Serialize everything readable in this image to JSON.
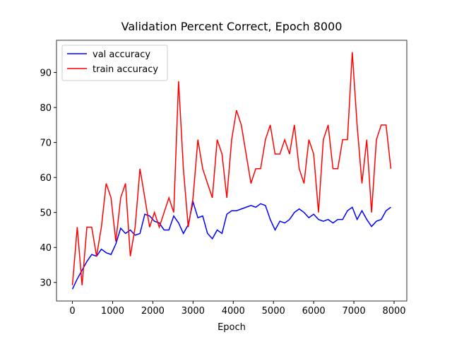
{
  "chart_data": {
    "type": "line",
    "title": "Validation Percent Correct, Epoch 8000",
    "x_label": "Epoch",
    "x": [
      0,
      120,
      240,
      360,
      480,
      600,
      720,
      840,
      960,
      1080,
      1200,
      1320,
      1440,
      1560,
      1680,
      1800,
      1920,
      2040,
      2160,
      2280,
      2400,
      2520,
      2640,
      2760,
      2880,
      3000,
      3120,
      3240,
      3360,
      3480,
      3600,
      3720,
      3840,
      3960,
      4080,
      4200,
      4320,
      4440,
      4560,
      4680,
      4800,
      4920,
      5040,
      5160,
      5280,
      5400,
      5520,
      5640,
      5760,
      5880,
      6000,
      6120,
      6240,
      6360,
      6480,
      6600,
      6720,
      6840,
      6960,
      7080,
      7200,
      7320,
      7440,
      7560,
      7680,
      7800,
      7920
    ],
    "series": [
      {
        "name": "val accuracy",
        "color": "#0000ff",
        "values": [
          28.1,
          31,
          33.5,
          36,
          38,
          37.5,
          39.5,
          38.5,
          38,
          41,
          45.5,
          44,
          45,
          43.5,
          44,
          49.5,
          49,
          47.5,
          47,
          45,
          45,
          49,
          47,
          44,
          46.5,
          53,
          48.5,
          49,
          44,
          42.5,
          45,
          44,
          49.5,
          50.5,
          50.5,
          51,
          51.5,
          52,
          51.5,
          52.5,
          52,
          48,
          45,
          47.5,
          47,
          48,
          50,
          51,
          50,
          48.5,
          49.5,
          48,
          47.5,
          48,
          47,
          48,
          48,
          50.5,
          51.5,
          48,
          50.5,
          48,
          46,
          47.5,
          48,
          50.5,
          51.5
        ]
      },
      {
        "name": "train accuracy",
        "color": "#ff0000",
        "values": [
          29.2,
          45.8,
          29.2,
          45.8,
          45.8,
          37.5,
          45.8,
          58.3,
          54.2,
          41.7,
          54.2,
          58.3,
          37.5,
          45.8,
          62.5,
          54.2,
          45.8,
          50,
          45.8,
          50,
          54.2,
          50,
          87.5,
          62.5,
          45.8,
          54.2,
          70.8,
          62.5,
          58.3,
          54.2,
          70.8,
          66.7,
          54.2,
          70.8,
          79.2,
          75,
          66.7,
          58.3,
          62.5,
          62.5,
          70.8,
          75,
          66.7,
          66.7,
          70.8,
          66.7,
          75,
          62.5,
          58.3,
          70.8,
          66.7,
          50,
          70.8,
          75,
          62.5,
          62.5,
          70.8,
          70.8,
          95.8,
          75,
          58.3,
          70.8,
          50,
          70.8,
          75,
          75,
          62.5
        ]
      }
    ],
    "xlim": [
      -396,
      8316
    ],
    "ylim": [
      24.7,
      99.2
    ],
    "xticks": [
      0,
      1000,
      2000,
      3000,
      4000,
      5000,
      6000,
      7000,
      8000
    ],
    "yticks": [
      30,
      40,
      50,
      60,
      70,
      80,
      90
    ],
    "legend": "upper left"
  }
}
